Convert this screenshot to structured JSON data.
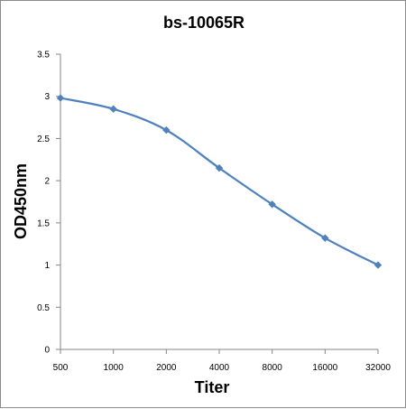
{
  "chart_data": {
    "type": "line",
    "title": "bs-10065R",
    "xlabel": "Titer",
    "ylabel": "OD450nm",
    "categories": [
      "500",
      "1000",
      "2000",
      "4000",
      "8000",
      "16000",
      "32000"
    ],
    "series": [
      {
        "values": [
          2.98,
          2.85,
          2.6,
          2.15,
          1.72,
          1.32,
          1.0
        ]
      }
    ],
    "ylim": [
      0,
      3.5
    ],
    "yticks": [
      "0",
      "0.5",
      "1",
      "1.5",
      "2",
      "2.5",
      "3",
      "3.5"
    ],
    "grid": false,
    "legend": "none",
    "colors": {
      "line": "#4f81bd",
      "marker": "#4f81bd",
      "axis": "#868686"
    }
  }
}
